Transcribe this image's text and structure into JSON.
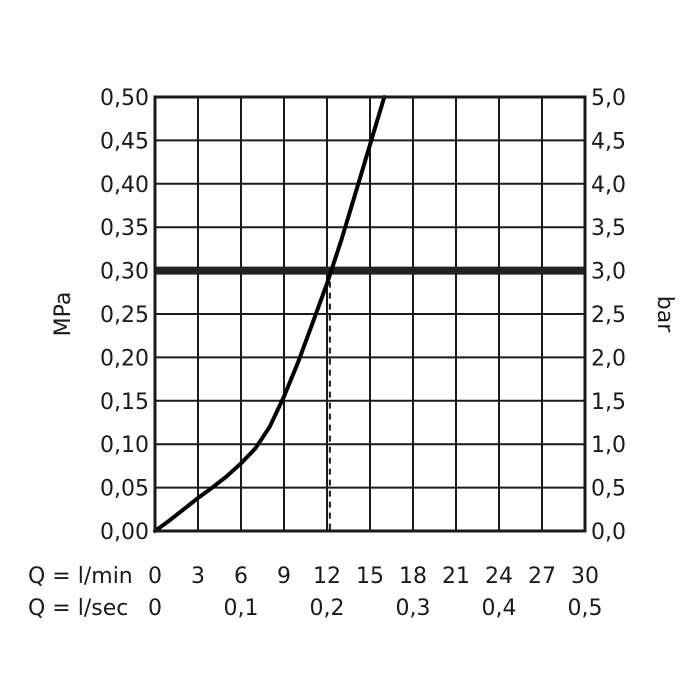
{
  "chart_data": {
    "type": "line",
    "title": "",
    "y_left_label": "MPa",
    "y_right_label": "bar",
    "y_left_ticks": [
      "0,00",
      "0,05",
      "0,10",
      "0,15",
      "0,20",
      "0,25",
      "0,30",
      "0,35",
      "0,40",
      "0,45",
      "0,50"
    ],
    "y_right_ticks": [
      "0,0",
      "0,5",
      "1,0",
      "1,5",
      "2,0",
      "2,5",
      "3,0",
      "3,5",
      "4,0",
      "4,5",
      "5,0"
    ],
    "x_min_label": "Q = l/min",
    "x_min_ticks": [
      "0",
      "3",
      "6",
      "9",
      "12",
      "15",
      "18",
      "21",
      "24",
      "27",
      "30"
    ],
    "x_sec_label": "Q = l/sec",
    "x_sec_ticks": [
      "0",
      "0,1",
      "0,2",
      "0,3",
      "0,4",
      "0,5"
    ],
    "xlim": [
      0,
      30
    ],
    "ylim": [
      0,
      0.5
    ],
    "grid": true,
    "series": [
      {
        "x": [
          0,
          1,
          2,
          3,
          4,
          5,
          6,
          7,
          8,
          9,
          10,
          11,
          12,
          13,
          14,
          15,
          16
        ],
        "y": [
          0,
          0.012,
          0.025,
          0.038,
          0.05,
          0.063,
          0.078,
          0.095,
          0.12,
          0.155,
          0.195,
          0.24,
          0.285,
          0.335,
          0.39,
          0.445,
          0.5
        ]
      }
    ],
    "reference_line": {
      "y": 0.3
    },
    "marker_line": {
      "x": 12.2
    }
  }
}
